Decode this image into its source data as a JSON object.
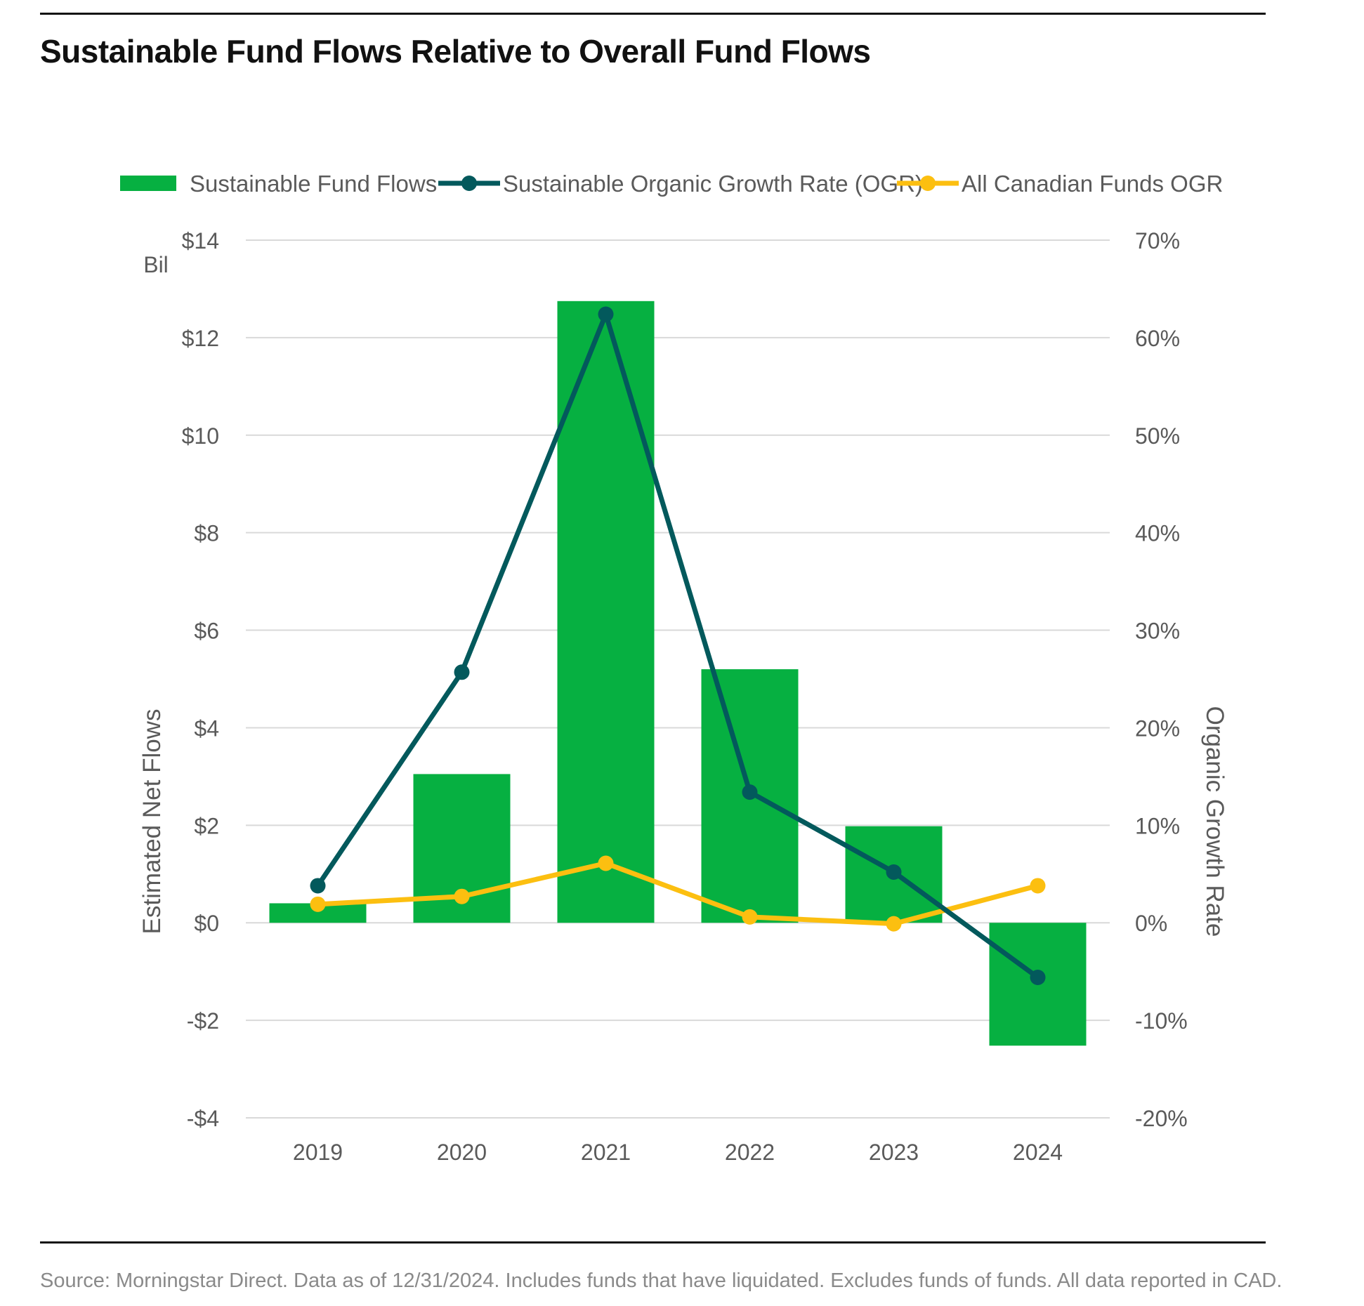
{
  "title": "Sustainable Fund Flows Relative to Overall Fund Flows",
  "source": "Source: Morningstar Direct. Data as of 12/31/2024. Includes funds that have liquidated. Excludes funds of funds. All data reported in CAD.",
  "colors": {
    "bars": "#06b041",
    "sustainable_ogr": "#03595c",
    "all_funds_ogr": "#fcbf10",
    "grid": "#d9d9d9",
    "axis_text": "#5a5a5a"
  },
  "chart_data": {
    "type": "bar",
    "title": "Sustainable Fund Flows Relative to Overall Fund Flows",
    "categories": [
      "2019",
      "2020",
      "2021",
      "2022",
      "2023",
      "2024"
    ],
    "series": [
      {
        "name": "Sustainable Fund Flows",
        "type": "bar",
        "axis": "left",
        "values": [
          0.4,
          3.05,
          12.75,
          5.2,
          1.98,
          -2.52
        ]
      },
      {
        "name": "Sustainable Organic Growth Rate (OGR)",
        "type": "line",
        "axis": "right",
        "values": [
          3.8,
          25.7,
          62.4,
          13.4,
          5.2,
          -5.6
        ]
      },
      {
        "name": "All Canadian Funds OGR",
        "type": "line",
        "axis": "right",
        "values": [
          1.9,
          2.7,
          6.1,
          0.6,
          -0.1,
          3.8
        ]
      }
    ],
    "ylabel": "Estimated Net Flows",
    "ylabel_unit": "Bil",
    "y2label": "Organic Growth Rate",
    "ylim": [
      -4,
      14
    ],
    "y2lim": [
      -20,
      70
    ],
    "yticks": [
      -4,
      -2,
      0,
      2,
      4,
      6,
      8,
      10,
      12,
      14
    ],
    "ytick_labels": [
      "-$4",
      "-$2",
      "$0",
      "$2",
      "$4",
      "$6",
      "$8",
      "$10",
      "$12",
      "$14"
    ],
    "y2ticks": [
      -20,
      -10,
      0,
      10,
      20,
      30,
      40,
      50,
      60,
      70
    ],
    "y2tick_labels": [
      "-20%",
      "-10%",
      "0%",
      "10%",
      "20%",
      "30%",
      "40%",
      "50%",
      "60%",
      "70%"
    ],
    "grid": true,
    "legend": "top",
    "legend_labels": [
      "Sustainable Fund Flows",
      "Sustainable Organic Growth Rate (OGR)",
      "All Canadian Funds OGR"
    ]
  }
}
